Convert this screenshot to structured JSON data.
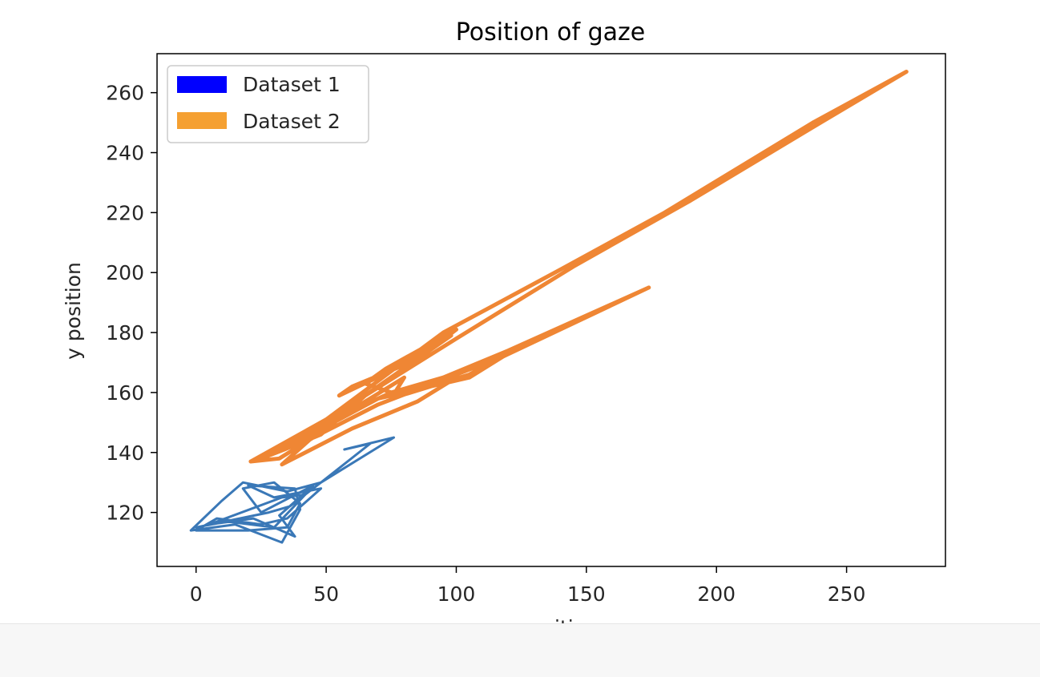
{
  "chart_data": {
    "type": "line",
    "title": "Position of gaze",
    "xlabel": "x position",
    "ylabel": "y position",
    "xlim": [
      -15,
      288
    ],
    "ylim": [
      102,
      273
    ],
    "xticks": [
      0,
      50,
      100,
      150,
      200,
      250
    ],
    "yticks": [
      120,
      140,
      160,
      180,
      200,
      220,
      240,
      260
    ],
    "grid": false,
    "legend": {
      "placement": "top-left",
      "entries": [
        {
          "label": "Dataset 1",
          "color": "#0000ff"
        },
        {
          "label": "Dataset 2",
          "color": "#f5a031"
        }
      ]
    },
    "series": [
      {
        "name": "Dataset 1",
        "color": "#3a78b7",
        "points": [
          [
            76,
            145
          ],
          [
            57,
            141
          ],
          [
            67,
            143
          ],
          [
            48,
            130
          ],
          [
            35,
            127
          ],
          [
            18,
            130
          ],
          [
            10,
            124
          ],
          [
            -2,
            114
          ],
          [
            15,
            116
          ],
          [
            33,
            110
          ],
          [
            40,
            121
          ],
          [
            38,
            128
          ],
          [
            20,
            129
          ],
          [
            30,
            125
          ],
          [
            48,
            128
          ],
          [
            35,
            118
          ],
          [
            25,
            116
          ],
          [
            8,
            118
          ],
          [
            0,
            114
          ],
          [
            20,
            114
          ],
          [
            35,
            115
          ],
          [
            40,
            123
          ],
          [
            30,
            130
          ],
          [
            18,
            128
          ],
          [
            25,
            120
          ],
          [
            45,
            129
          ],
          [
            32,
            119
          ],
          [
            38,
            112
          ],
          [
            22,
            118
          ],
          [
            5,
            116
          ],
          [
            33,
            125
          ],
          [
            42,
            126
          ],
          [
            30,
            115
          ],
          [
            12,
            117
          ],
          [
            0,
            115
          ],
          [
            28,
            120
          ],
          [
            36,
            122
          ],
          [
            48,
            130
          ],
          [
            76,
            145
          ]
        ]
      },
      {
        "name": "Dataset 2",
        "color": "#ef8634",
        "points": [
          [
            21,
            137
          ],
          [
            50,
            151
          ],
          [
            95,
            180
          ],
          [
            140,
            201
          ],
          [
            180,
            220
          ],
          [
            237,
            250
          ],
          [
            273,
            267
          ],
          [
            240,
            250
          ],
          [
            190,
            224
          ],
          [
            145,
            202
          ],
          [
            100,
            178
          ],
          [
            65,
            159
          ],
          [
            48,
            146
          ],
          [
            34,
            141
          ],
          [
            25,
            138
          ],
          [
            40,
            144
          ],
          [
            70,
            158
          ],
          [
            105,
            165
          ],
          [
            118,
            172
          ],
          [
            174,
            195
          ],
          [
            120,
            174
          ],
          [
            95,
            165
          ],
          [
            75,
            160
          ],
          [
            65,
            163
          ],
          [
            73,
            168
          ],
          [
            100,
            181
          ],
          [
            85,
            171
          ],
          [
            60,
            162
          ],
          [
            55,
            159
          ],
          [
            72,
            166
          ],
          [
            98,
            179
          ],
          [
            55,
            153
          ],
          [
            33,
            136
          ],
          [
            60,
            148
          ],
          [
            85,
            157
          ],
          [
            100,
            165
          ],
          [
            75,
            160
          ],
          [
            55,
            152
          ],
          [
            45,
            148
          ],
          [
            35,
            143
          ],
          [
            30,
            140
          ],
          [
            50,
            149
          ],
          [
            80,
            165
          ],
          [
            75,
            158
          ],
          [
            105,
            166
          ],
          [
            118,
            172
          ],
          [
            70,
            156
          ],
          [
            45,
            145
          ],
          [
            32,
            138
          ],
          [
            21,
            137
          ]
        ]
      }
    ]
  }
}
